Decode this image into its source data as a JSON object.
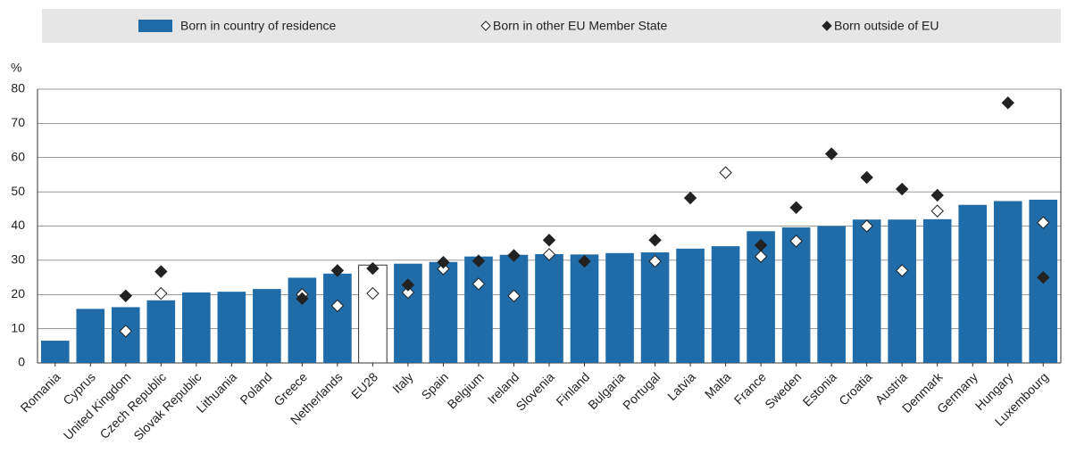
{
  "chart_data": {
    "type": "bar",
    "y_label": "%",
    "categories": [
      "Romania",
      "Cyprus",
      "United Kingdom",
      "Czech Republic",
      "Slovak Republic",
      "Lithuania",
      "Poland",
      "Greece",
      "Netherlands",
      "EU28",
      "Italy",
      "Spain",
      "Belgium",
      "Ireland",
      "Slovenia",
      "Finland",
      "Bulgaria",
      "Portugal",
      "Latvia",
      "Malta",
      "France",
      "Sweden",
      "Estonia",
      "Croatia",
      "Austria",
      "Denmark",
      "Germany",
      "Hungary",
      "Luxembourg"
    ],
    "highlight": "EU28",
    "series": [
      {
        "name": "Born in country of residence",
        "color": "#1f6ca8",
        "marker": "bar",
        "values": [
          6.5,
          15.8,
          16.3,
          18.3,
          20.6,
          20.8,
          21.6,
          24.9,
          26.1,
          28.6,
          29.0,
          29.5,
          31.1,
          31.6,
          31.8,
          31.7,
          32.1,
          32.3,
          33.4,
          34.1,
          38.5,
          39.6,
          40.0,
          41.9,
          41.9,
          42.0,
          46.2,
          47.3,
          47.7
        ]
      },
      {
        "name": "Born in other EU Member State",
        "color": "#ffffff",
        "marker": "diamond",
        "values": [
          null,
          null,
          9.3,
          20.3,
          null,
          null,
          null,
          20.0,
          16.7,
          20.3,
          20.6,
          27.5,
          23.1,
          19.6,
          31.7,
          null,
          null,
          29.7,
          null,
          55.6,
          31.1,
          35.6,
          null,
          40.0,
          27.0,
          44.4,
          null,
          null,
          41.0
        ]
      },
      {
        "name": "Born outside of EU",
        "color": "#222222",
        "marker": "diamond",
        "values": [
          null,
          null,
          19.6,
          26.7,
          null,
          null,
          null,
          18.8,
          27.0,
          27.6,
          22.8,
          29.4,
          29.8,
          31.4,
          35.9,
          29.7,
          null,
          35.9,
          48.2,
          null,
          34.4,
          45.4,
          61.1,
          54.2,
          50.8,
          49.0,
          null,
          76.0,
          25.0
        ]
      }
    ],
    "ylim": [
      0,
      80
    ],
    "yticks": [
      0,
      10,
      20,
      30,
      40,
      50,
      60,
      70,
      80
    ],
    "grid": true
  }
}
